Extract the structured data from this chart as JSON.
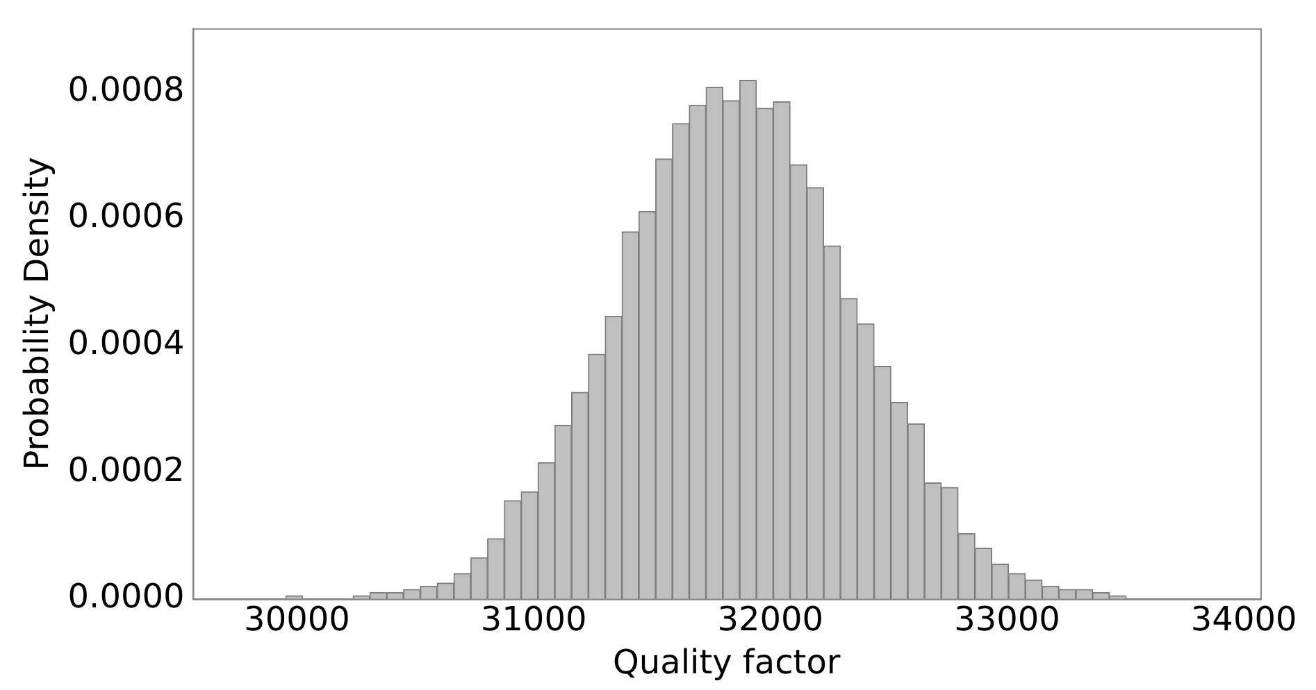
{
  "chart_data": {
    "type": "histogram",
    "xlabel": "Quality factor",
    "ylabel": "Probability Density",
    "bins": [
      29953,
      30024,
      30095,
      30166,
      30237,
      30308,
      30379,
      30450,
      30521,
      30592,
      30663,
      30734,
      30805,
      30876,
      30947,
      31018,
      31089,
      31160,
      31231,
      31302,
      31373,
      31444,
      31515,
      31586,
      31657,
      31728,
      31799,
      31870,
      31941,
      32012,
      32083,
      32154,
      32225,
      32296,
      32367,
      32438,
      32509,
      32580,
      32651,
      32722,
      32793,
      32864,
      32935,
      33006,
      33077,
      33148,
      33219,
      33290,
      33361,
      33432,
      33503
    ],
    "values": [
      5e-06,
      0,
      0,
      0,
      5e-06,
      1e-05,
      1e-05,
      1.5e-05,
      2e-05,
      2.5e-05,
      4e-05,
      6.5e-05,
      9.5e-05,
      0.000155,
      0.000169,
      0.000215,
      0.000274,
      0.000326,
      0.000386,
      0.000446,
      0.000579,
      0.000611,
      0.000694,
      0.00075,
      0.000779,
      0.000807,
      0.000786,
      0.000818,
      0.000774,
      0.000784,
      0.000685,
      0.000649,
      0.000557,
      0.000474,
      0.000434,
      0.000367,
      0.00031,
      0.000276,
      0.000183,
      0.000176,
      0.000103,
      8e-05,
      5.5e-05,
      4e-05,
      3e-05,
      2e-05,
      1.5e-05,
      1.5e-05,
      1e-05,
      5e-06
    ],
    "color": "#c0c0c0",
    "xlim": [
      29560,
      34070
    ],
    "xticks": [
      30000,
      31000,
      32000,
      33000,
      34000
    ],
    "ylim": [
      0,
      0.0009
    ],
    "yticks": [
      {
        "value": 0,
        "label": "0.0000"
      },
      {
        "value": 0.0002,
        "label": "0.0002"
      },
      {
        "value": 0.0004,
        "label": "0.0004"
      },
      {
        "value": 0.0006,
        "label": "0.0006"
      },
      {
        "value": 0.0008,
        "label": "0.0008"
      }
    ],
    "grid": false,
    "legend": false
  }
}
